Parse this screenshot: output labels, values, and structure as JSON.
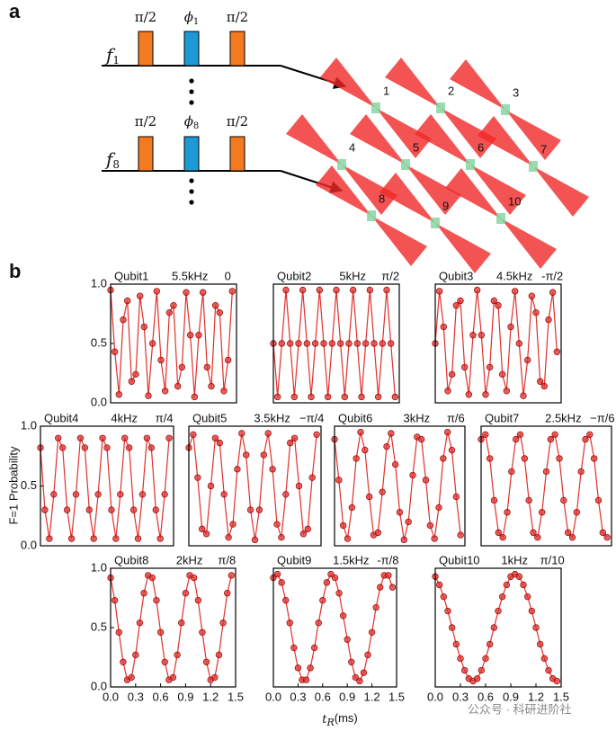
{
  "panel_a": {
    "label": "a",
    "rows": [
      {
        "freq": "f",
        "freq_subscript": "1",
        "pulses": [
          "π/2",
          "ϕ",
          "π/2"
        ],
        "phase_subscript": "1"
      },
      {
        "freq": "f",
        "freq_subscript": "8",
        "pulses": [
          "π/2",
          "ϕ",
          "π/2"
        ],
        "phase_subscript": "8"
      }
    ],
    "sites": [
      "1",
      "2",
      "3",
      "4",
      "5",
      "6",
      "7",
      "8",
      "9",
      "10"
    ]
  },
  "panel_b": {
    "label": "b",
    "y_label": "F=1 Probability",
    "x_label": {
      "symbol": "t",
      "subscript": "R",
      "unit": "(ms)"
    }
  },
  "watermark": "公众号 · 科研进阶社",
  "chart_data": [
    {
      "type": "line",
      "title": "Qubit1",
      "frequency": "5.5kHz",
      "phase": "0",
      "color": "#e0302c",
      "xlim": [
        0,
        1.5
      ],
      "ylim": [
        0,
        1
      ],
      "yticks": [
        {
          "value": 0,
          "label": "0.0"
        },
        {
          "value": 0.5,
          "label": "0.5"
        },
        {
          "value": 1,
          "label": "1.0"
        }
      ],
      "x": [
        0,
        0.05,
        0.1,
        0.15,
        0.2,
        0.25,
        0.3,
        0.35,
        0.4,
        0.45,
        0.5,
        0.55,
        0.6,
        0.65,
        0.7,
        0.75,
        0.8,
        0.85,
        0.9,
        0.95,
        1,
        1.05,
        1.1,
        1.15,
        1.2,
        1.25,
        1.3,
        1.35,
        1.4,
        1.45
      ],
      "values": [
        0.95,
        0.43,
        0.07,
        0.7,
        0.86,
        0.18,
        0.24,
        0.9,
        0.64,
        0.06,
        0.5,
        0.94,
        0.36,
        0.1,
        0.76,
        0.82,
        0.14,
        0.3,
        0.93,
        0.57,
        0.05,
        0.57,
        0.93,
        0.3,
        0.14,
        0.82,
        0.76,
        0.1,
        0.36,
        0.94
      ]
    },
    {
      "type": "line",
      "title": "Qubit2",
      "frequency": "5kHz",
      "phase": "π/2",
      "color": "#e0302c",
      "xlim": [
        0,
        1.5
      ],
      "ylim": [
        0,
        1
      ],
      "x": [
        0,
        0.05,
        0.1,
        0.15,
        0.2,
        0.25,
        0.3,
        0.35,
        0.4,
        0.45,
        0.5,
        0.55,
        0.6,
        0.65,
        0.7,
        0.75,
        0.8,
        0.85,
        0.9,
        0.95,
        1,
        1.05,
        1.1,
        1.15,
        1.2,
        1.25,
        1.3,
        1.35,
        1.4,
        1.45
      ],
      "values": [
        0.5,
        0.05,
        0.5,
        0.95,
        0.5,
        0.05,
        0.5,
        0.95,
        0.5,
        0.05,
        0.5,
        0.95,
        0.5,
        0.05,
        0.5,
        0.95,
        0.5,
        0.05,
        0.5,
        0.95,
        0.5,
        0.05,
        0.5,
        0.95,
        0.5,
        0.05,
        0.5,
        0.95,
        0.5,
        0.05
      ]
    },
    {
      "type": "line",
      "title": "Qubit3",
      "frequency": "4.5kHz",
      "phase": "-π/2",
      "color": "#e0302c",
      "xlim": [
        0,
        1.5
      ],
      "ylim": [
        0,
        1
      ],
      "x": [
        0,
        0.05,
        0.1,
        0.15,
        0.2,
        0.25,
        0.3,
        0.35,
        0.4,
        0.45,
        0.5,
        0.55,
        0.6,
        0.65,
        0.7,
        0.75,
        0.8,
        0.85,
        0.9,
        0.95,
        1,
        1.05,
        1.1,
        1.15,
        1.2,
        1.25,
        1.3,
        1.35,
        1.4,
        1.45
      ],
      "values": [
        0.5,
        0.94,
        0.64,
        0.1,
        0.24,
        0.82,
        0.86,
        0.3,
        0.07,
        0.57,
        0.95,
        0.57,
        0.07,
        0.3,
        0.86,
        0.82,
        0.24,
        0.1,
        0.64,
        0.94,
        0.5,
        0.06,
        0.36,
        0.9,
        0.76,
        0.18,
        0.14,
        0.7,
        0.93,
        0.43
      ]
    },
    {
      "type": "line",
      "title": "Qubit4",
      "frequency": "4kHz",
      "phase": "π/4",
      "color": "#e0302c",
      "xlim": [
        0,
        1.5
      ],
      "ylim": [
        0,
        1
      ],
      "yticks": [
        {
          "value": 0,
          "label": "0.0"
        },
        {
          "value": 0.5,
          "label": "0.5"
        },
        {
          "value": 1,
          "label": "1.0"
        }
      ],
      "x": [
        0,
        0.05,
        0.1,
        0.15,
        0.2,
        0.25,
        0.3,
        0.35,
        0.4,
        0.45,
        0.5,
        0.55,
        0.6,
        0.65,
        0.7,
        0.75,
        0.8,
        0.85,
        0.9,
        0.95,
        1,
        1.05,
        1.1,
        1.15,
        1.2,
        1.25,
        1.3,
        1.35,
        1.4,
        1.45
      ],
      "values": [
        0.82,
        0.3,
        0.06,
        0.43,
        0.9,
        0.82,
        0.3,
        0.06,
        0.43,
        0.9,
        0.82,
        0.3,
        0.06,
        0.43,
        0.9,
        0.82,
        0.3,
        0.06,
        0.43,
        0.9,
        0.82,
        0.3,
        0.06,
        0.43,
        0.9,
        0.82,
        0.3,
        0.06,
        0.43,
        0.9
      ]
    },
    {
      "type": "line",
      "title": "Qubit5",
      "frequency": "3.5kHz",
      "phase": "−π/4",
      "color": "#e0302c",
      "xlim": [
        0,
        1.5
      ],
      "ylim": [
        0,
        1
      ],
      "x": [
        0,
        0.05,
        0.1,
        0.15,
        0.2,
        0.25,
        0.3,
        0.35,
        0.4,
        0.45,
        0.5,
        0.55,
        0.6,
        0.65,
        0.7,
        0.75,
        0.8,
        0.85,
        0.9,
        0.95,
        1,
        1.05,
        1.1,
        1.15,
        1.2,
        1.25,
        1.3,
        1.35,
        1.4,
        1.45
      ],
      "values": [
        0.82,
        0.93,
        0.57,
        0.14,
        0.1,
        0.5,
        0.9,
        0.86,
        0.43,
        0.07,
        0.18,
        0.64,
        0.94,
        0.76,
        0.3,
        0.05,
        0.3,
        0.76,
        0.94,
        0.64,
        0.18,
        0.07,
        0.43,
        0.86,
        0.9,
        0.5,
        0.1,
        0.14,
        0.57,
        0.93
      ]
    },
    {
      "type": "line",
      "title": "Qubit6",
      "frequency": "3kHz",
      "phase": "π/6",
      "color": "#e0302c",
      "xlim": [
        0,
        1.5
      ],
      "ylim": [
        0,
        1
      ],
      "x": [
        0,
        0.05,
        0.1,
        0.15,
        0.2,
        0.25,
        0.3,
        0.35,
        0.4,
        0.45,
        0.5,
        0.55,
        0.6,
        0.65,
        0.7,
        0.75,
        0.8,
        0.85,
        0.9,
        0.95,
        1,
        1.05,
        1.1,
        1.15,
        1.2,
        1.25,
        1.3,
        1.35,
        1.4,
        1.45
      ],
      "values": [
        0.89,
        0.55,
        0.17,
        0.06,
        0.32,
        0.73,
        0.95,
        0.8,
        0.41,
        0.09,
        0.11,
        0.45,
        0.83,
        0.94,
        0.68,
        0.28,
        0.05,
        0.2,
        0.59,
        0.91,
        0.89,
        0.55,
        0.17,
        0.06,
        0.32,
        0.73,
        0.95,
        0.8,
        0.41,
        0.09
      ]
    },
    {
      "type": "line",
      "title": "Qubit7",
      "frequency": "2.5kHz",
      "phase": "−π/6",
      "color": "#e0302c",
      "xlim": [
        0,
        1.5
      ],
      "ylim": [
        0,
        1
      ],
      "x": [
        0,
        0.05,
        0.1,
        0.15,
        0.2,
        0.25,
        0.3,
        0.35,
        0.4,
        0.45,
        0.5,
        0.55,
        0.6,
        0.65,
        0.7,
        0.75,
        0.8,
        0.85,
        0.9,
        0.95,
        1,
        1.05,
        1.1,
        1.15,
        1.2,
        1.25,
        1.3,
        1.35,
        1.4,
        1.45
      ],
      "values": [
        0.89,
        0.93,
        0.73,
        0.38,
        0.11,
        0.07,
        0.28,
        0.62,
        0.89,
        0.93,
        0.73,
        0.38,
        0.11,
        0.07,
        0.28,
        0.62,
        0.89,
        0.93,
        0.73,
        0.38,
        0.11,
        0.07,
        0.28,
        0.62,
        0.89,
        0.93,
        0.73,
        0.38,
        0.11,
        0.07
      ]
    },
    {
      "type": "line",
      "title": "Qubit8",
      "frequency": "2kHz",
      "phase": "π/8",
      "color": "#e0302c",
      "xlim": [
        0,
        1.5
      ],
      "ylim": [
        0,
        1
      ],
      "yticks": [
        {
          "value": 0,
          "label": "0.0"
        },
        {
          "value": 0.5,
          "label": "0.5"
        },
        {
          "value": 1,
          "label": "1.0"
        }
      ],
      "xticks": [
        {
          "value": 0,
          "label": "0.0"
        },
        {
          "value": 0.3,
          "label": "0.3"
        },
        {
          "value": 0.6,
          "label": "0.6"
        },
        {
          "value": 0.9,
          "label": "0.9"
        },
        {
          "value": 1.2,
          "label": "1.2"
        },
        {
          "value": 1.5,
          "label": "1.5"
        }
      ],
      "x": [
        0,
        0.05,
        0.1,
        0.15,
        0.2,
        0.25,
        0.3,
        0.35,
        0.4,
        0.45,
        0.5,
        0.55,
        0.6,
        0.65,
        0.7,
        0.75,
        0.8,
        0.85,
        0.9,
        0.95,
        1,
        1.05,
        1.1,
        1.15,
        1.2,
        1.25,
        1.3,
        1.35,
        1.4,
        1.45
      ],
      "values": [
        0.92,
        0.73,
        0.46,
        0.21,
        0.06,
        0.08,
        0.27,
        0.54,
        0.79,
        0.94,
        0.92,
        0.73,
        0.46,
        0.21,
        0.06,
        0.08,
        0.27,
        0.54,
        0.79,
        0.94,
        0.92,
        0.73,
        0.46,
        0.21,
        0.06,
        0.08,
        0.27,
        0.54,
        0.79,
        0.94
      ]
    },
    {
      "type": "line",
      "title": "Qubit9",
      "frequency": "1.5kHz",
      "phase": "-π/8",
      "color": "#e0302c",
      "xlim": [
        0,
        1.5
      ],
      "ylim": [
        0,
        1
      ],
      "xticks": [
        {
          "value": 0,
          "label": "0.0"
        },
        {
          "value": 0.3,
          "label": "0.3"
        },
        {
          "value": 0.6,
          "label": "0.6"
        },
        {
          "value": 0.9,
          "label": "0.9"
        },
        {
          "value": 1.2,
          "label": "1.2"
        },
        {
          "value": 1.5,
          "label": "1.5"
        }
      ],
      "x": [
        0,
        0.05,
        0.1,
        0.15,
        0.2,
        0.25,
        0.3,
        0.35,
        0.4,
        0.45,
        0.5,
        0.55,
        0.6,
        0.65,
        0.7,
        0.75,
        0.8,
        0.85,
        0.9,
        0.95,
        1,
        1.05,
        1.1,
        1.15,
        1.2,
        1.25,
        1.3,
        1.35,
        1.4,
        1.45
      ],
      "values": [
        0.92,
        0.95,
        0.88,
        0.73,
        0.54,
        0.33,
        0.16,
        0.06,
        0.06,
        0.16,
        0.33,
        0.54,
        0.73,
        0.88,
        0.95,
        0.92,
        0.79,
        0.6,
        0.4,
        0.21,
        0.08,
        0.05,
        0.12,
        0.27,
        0.46,
        0.67,
        0.84,
        0.94,
        0.94,
        0.84
      ]
    },
    {
      "type": "line",
      "title": "Qubit10",
      "frequency": "1kHz",
      "phase": "π/10",
      "color": "#e0302c",
      "xlim": [
        0,
        1.5
      ],
      "ylim": [
        0,
        1
      ],
      "xticks": [
        {
          "value": 0,
          "label": "0.0"
        },
        {
          "value": 0.3,
          "label": "0.3"
        },
        {
          "value": 0.6,
          "label": "0.6"
        },
        {
          "value": 0.9,
          "label": "0.9"
        },
        {
          "value": 1.2,
          "label": "1.2"
        },
        {
          "value": 1.5,
          "label": "1.5"
        }
      ],
      "x": [
        0,
        0.05,
        0.1,
        0.15,
        0.2,
        0.25,
        0.3,
        0.35,
        0.4,
        0.45,
        0.5,
        0.55,
        0.6,
        0.65,
        0.7,
        0.75,
        0.8,
        0.85,
        0.9,
        0.95,
        1,
        1.05,
        1.1,
        1.15,
        1.2,
        1.25,
        1.3,
        1.35,
        1.4,
        1.45
      ],
      "values": [
        0.93,
        0.86,
        0.76,
        0.64,
        0.5,
        0.36,
        0.24,
        0.14,
        0.07,
        0.05,
        0.07,
        0.14,
        0.24,
        0.36,
        0.5,
        0.64,
        0.76,
        0.86,
        0.93,
        0.95,
        0.93,
        0.86,
        0.76,
        0.64,
        0.5,
        0.36,
        0.24,
        0.14,
        0.07,
        0.05
      ]
    }
  ]
}
